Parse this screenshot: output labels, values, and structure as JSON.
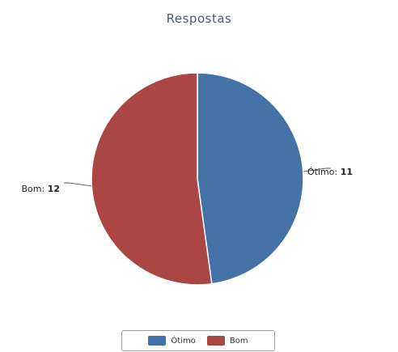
{
  "chart_data": {
    "type": "pie",
    "title": "Respostas",
    "series": [
      {
        "name": "Respostas",
        "slices": [
          {
            "label": "Ótimo",
            "value": 11,
            "color": "#4572a7"
          },
          {
            "label": "Bom",
            "value": 12,
            "color": "#aa4643"
          }
        ]
      }
    ],
    "data_labels": [
      "Ótimo",
      "Bom"
    ],
    "legend": {
      "position": "bottom-center",
      "items": [
        "Ótimo",
        "Bom"
      ]
    }
  }
}
